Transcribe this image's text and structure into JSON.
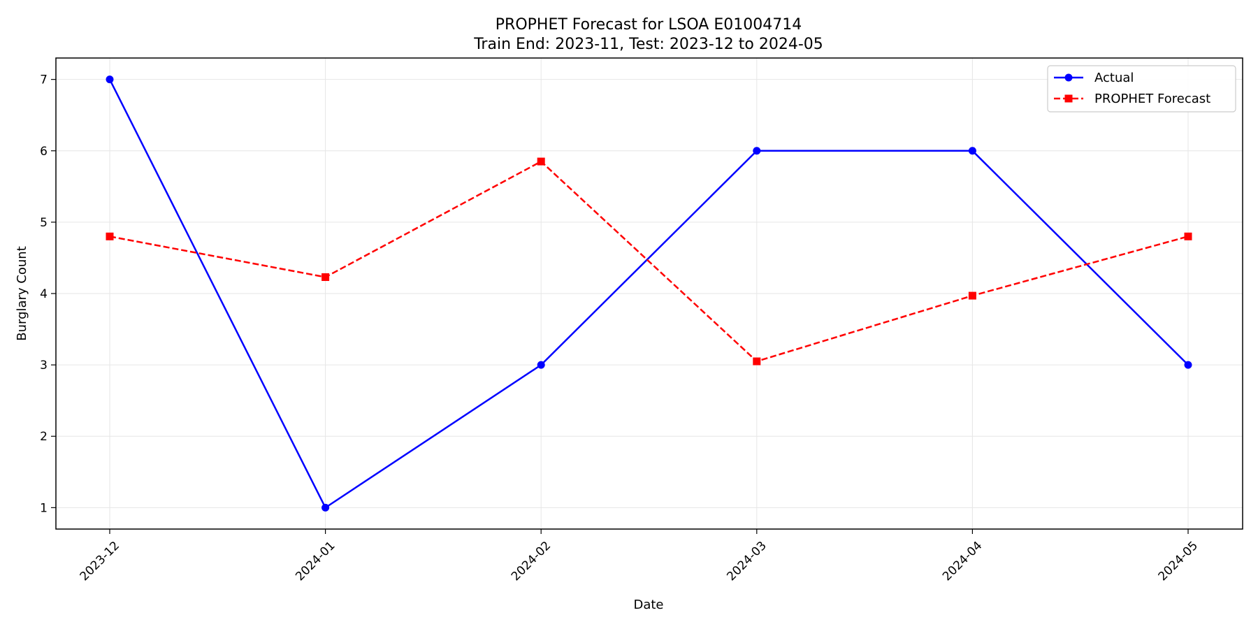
{
  "chart_data": {
    "type": "line",
    "title": "PROPHET Forecast for LSOA E01004714",
    "subtitle": "Train End: 2023-11, Test: 2023-12 to 2024-05",
    "xlabel": "Date",
    "ylabel": "Burglary Count",
    "categories": [
      "2023-12",
      "2024-01",
      "2024-02",
      "2024-03",
      "2024-04",
      "2024-05"
    ],
    "yticks": [
      1,
      2,
      3,
      4,
      5,
      6,
      7
    ],
    "ylim": [
      0.7,
      7.3
    ],
    "grid": true,
    "legend_position": "top-right",
    "series": [
      {
        "name": "Actual",
        "values": [
          7,
          1,
          3,
          6,
          6,
          3
        ],
        "color": "#0000ff",
        "line_style": "solid",
        "marker": "circle"
      },
      {
        "name": "PROPHET Forecast",
        "values": [
          4.8,
          4.23,
          5.85,
          3.05,
          3.97,
          4.8
        ],
        "color": "#ff0000",
        "line_style": "dashed",
        "marker": "square"
      }
    ]
  }
}
